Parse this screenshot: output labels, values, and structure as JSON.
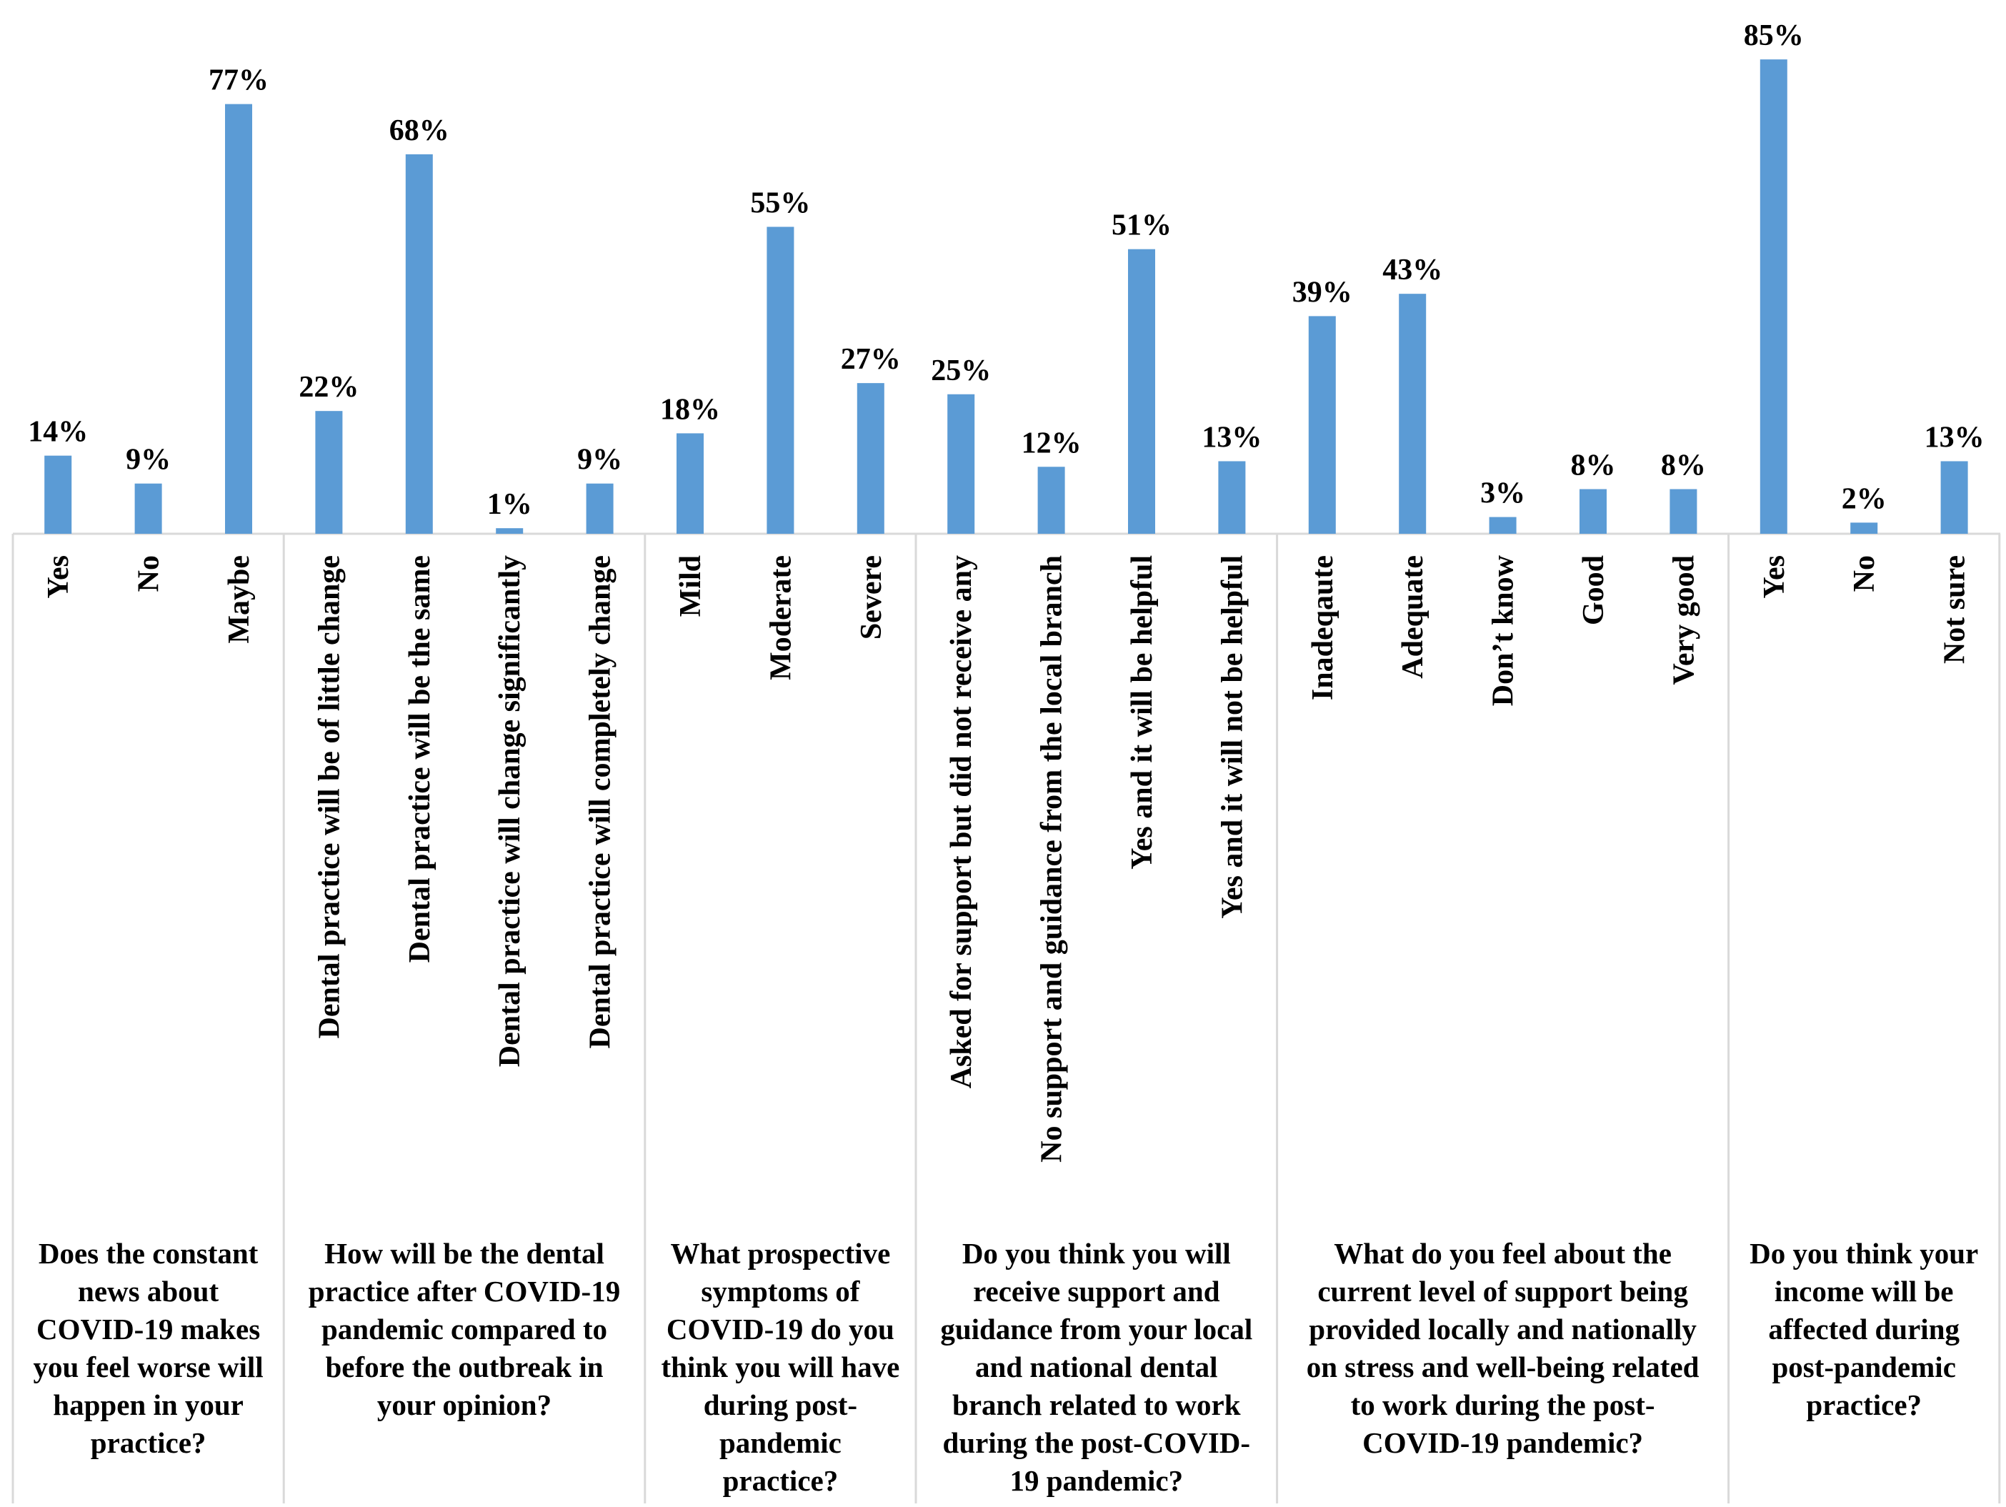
{
  "chart_data": {
    "type": "bar",
    "title": "",
    "xlabel": "",
    "ylabel": "",
    "ylim": [
      0,
      100
    ],
    "grid": false,
    "legend": "none",
    "bar_color": "#5B9BD5",
    "axis_color": "#D9D9D9",
    "value_suffix": "%",
    "groups": [
      {
        "question_lines": [
          "Does the constant",
          "news about",
          "COVID-19 makes",
          "you feel worse will",
          "happen in your",
          "practice?"
        ],
        "categories": [
          "Yes",
          "No",
          "Maybe"
        ],
        "values": [
          14,
          9,
          77
        ],
        "labels": [
          "14%",
          "9%",
          "77%"
        ]
      },
      {
        "question_lines": [
          "How will be the dental",
          "practice after COVID-19",
          "pandemic compared to",
          "before the outbreak in",
          "your opinion?"
        ],
        "categories": [
          "Dental practice will be of little change",
          "Dental practice will be the same",
          "Dental practice will change significantly",
          "Dental practice will completely change"
        ],
        "values": [
          22,
          68,
          1,
          9
        ],
        "labels": [
          "22%",
          "68%",
          "1%",
          "9%"
        ]
      },
      {
        "question_lines": [
          "What prospective",
          "symptoms of",
          "COVID-19 do you",
          "think you will have",
          "during post-",
          "pandemic",
          "practice?"
        ],
        "categories": [
          "Mild",
          "Moderate",
          "Severe"
        ],
        "values": [
          18,
          55,
          27
        ],
        "labels": [
          "18%",
          "55%",
          "27%"
        ]
      },
      {
        "question_lines": [
          "Do you think you will",
          "receive support and",
          "guidance from your local",
          "and national dental",
          "branch related to work",
          "during the post-COVID-",
          "19 pandemic?"
        ],
        "categories": [
          "Asked for support but did not receive any",
          "No support and guidance from the local branch",
          "Yes and it will be helpful",
          "Yes and it will not be helpful"
        ],
        "values": [
          25,
          12,
          51,
          13
        ],
        "labels": [
          "25%",
          "12%",
          "51%",
          "13%"
        ]
      },
      {
        "question_lines": [
          "What do you feel about the",
          "current level of support being",
          "provided locally and nationally",
          "on stress and well-being related",
          "to work during the post-",
          "COVID-19 pandemic?"
        ],
        "categories": [
          "Inadeqaute",
          "Adequate",
          "Don’t know",
          "Good",
          "Very good"
        ],
        "values": [
          39,
          43,
          3,
          8,
          8
        ],
        "labels": [
          "39%",
          "43%",
          "3%",
          "8%",
          "8%"
        ]
      },
      {
        "question_lines": [
          "Do you think your",
          "income will be",
          "affected during",
          "post-pandemic",
          "practice?"
        ],
        "categories": [
          "Yes",
          "No",
          "Not sure"
        ],
        "values": [
          85,
          2,
          13
        ],
        "labels": [
          "85%",
          "2%",
          "13%"
        ]
      }
    ]
  }
}
